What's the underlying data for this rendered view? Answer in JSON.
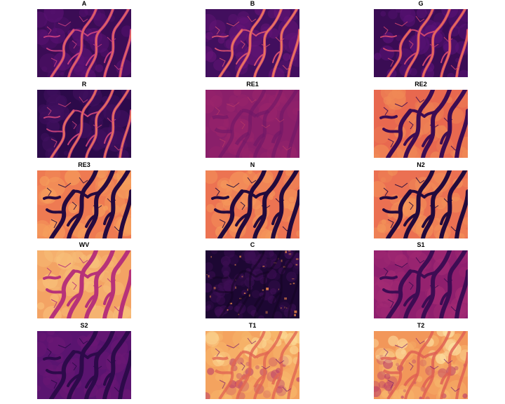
{
  "figure": {
    "panels": [
      {
        "title": "A",
        "colors": {
          "bg": "#3b0c55",
          "land": "#5a1273",
          "channel": "#c33d80",
          "hi": "#f07a4e"
        },
        "mode": "bright_channels"
      },
      {
        "title": "B",
        "colors": {
          "bg": "#420f5e",
          "land": "#671578",
          "channel": "#d24e71",
          "hi": "#f58e50"
        },
        "mode": "bright_channels"
      },
      {
        "title": "G",
        "colors": {
          "bg": "#3a0c54",
          "land": "#5c1378",
          "channel": "#ce456f",
          "hi": "#f2854a"
        },
        "mode": "bright_channels"
      },
      {
        "title": "R",
        "colors": {
          "bg": "#2c0a4a",
          "land": "#41105f",
          "channel": "#c54278",
          "hi": "#f38c48"
        },
        "mode": "bright_channels"
      },
      {
        "title": "RE1",
        "colors": {
          "bg": "#8a1f6a",
          "land": "#9b256b",
          "channel": "#6e1767",
          "hi": "#c13f66"
        },
        "mode": "muted"
      },
      {
        "title": "RE2",
        "colors": {
          "bg": "#e8684f",
          "land": "#f08a56",
          "channel": "#3c0c52",
          "hi": "#fbb870"
        },
        "mode": "dark_channels"
      },
      {
        "title": "RE3",
        "colors": {
          "bg": "#ee7a52",
          "land": "#f6a05d",
          "channel": "#250a3f",
          "hi": "#fcc27c"
        },
        "mode": "dark_channels"
      },
      {
        "title": "N",
        "colors": {
          "bg": "#ec7352",
          "land": "#f59a5b",
          "channel": "#220a3c",
          "hi": "#fcbe78"
        },
        "mode": "dark_channels"
      },
      {
        "title": "N2",
        "colors": {
          "bg": "#eb7052",
          "land": "#f4975a",
          "channel": "#220a3c",
          "hi": "#fbbc77"
        },
        "mode": "dark_channels"
      },
      {
        "title": "WV",
        "colors": {
          "bg": "#f3a364",
          "land": "#f8c07a",
          "channel": "#b73279",
          "hi": "#fde0a0"
        },
        "mode": "purple_channels"
      },
      {
        "title": "C",
        "colors": {
          "bg": "#1d0733",
          "land": "#3e0f55",
          "channel": "#12041f",
          "hi": "#f08a4a"
        },
        "mode": "noisy_dark"
      },
      {
        "title": "S1",
        "colors": {
          "bg": "#8f1f6e",
          "land": "#a42b74",
          "channel": "#3d0c53",
          "hi": "#c23d76"
        },
        "mode": "dark_channels"
      },
      {
        "title": "S2",
        "colors": {
          "bg": "#5a1470",
          "land": "#6c1875",
          "channel": "#2d0a4a",
          "hi": "#86216f"
        },
        "mode": "dark_channels"
      },
      {
        "title": "T1",
        "colors": {
          "bg": "#f4a35f",
          "land": "#f7b86c",
          "channel": "#e16552",
          "hi": "#fcdc98"
        },
        "mode": "thermal"
      },
      {
        "title": "T2",
        "colors": {
          "bg": "#f2975a",
          "land": "#f7b66c",
          "channel": "#de5e53",
          "hi": "#fde4a6"
        },
        "mode": "thermal"
      }
    ]
  }
}
